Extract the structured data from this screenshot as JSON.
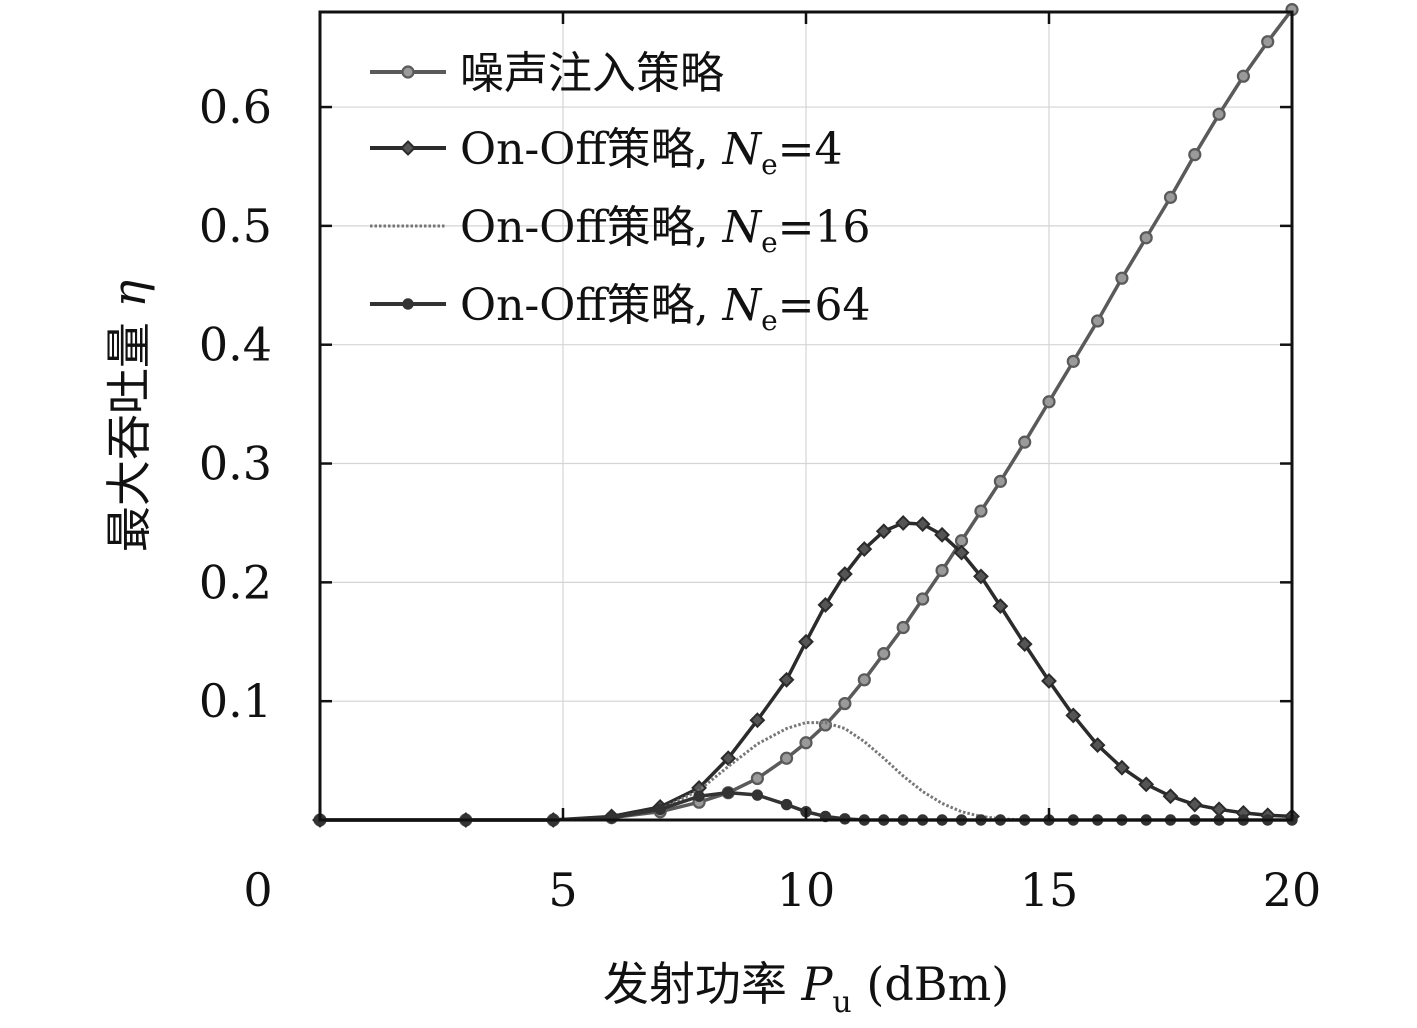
{
  "chart_data": {
    "type": "line",
    "xlabel": {
      "prefix": "发射功率 ",
      "var": "P",
      "sub": "u",
      "suffix": " (dBm)"
    },
    "ylabel": {
      "prefix": "最大吞吐量 ",
      "var": "η"
    },
    "xlim": [
      0,
      20
    ],
    "ylim": [
      0,
      0.68
    ],
    "xticks": [
      0,
      5,
      10,
      15,
      20
    ],
    "xtick_labels": [
      "0",
      "5",
      "10",
      "15",
      "20"
    ],
    "yticks": [
      0.1,
      0.2,
      0.3,
      0.4,
      0.5,
      0.6
    ],
    "ytick_labels": [
      "0.1",
      "0.2",
      "0.3",
      "0.4",
      "0.5",
      "0.6"
    ],
    "grid": true,
    "legend_position": "top-left",
    "series": [
      {
        "name": "噪声注入策略",
        "legend": {
          "text": "噪声注入策略",
          "var": "",
          "sub": "",
          "value": ""
        },
        "color": "#5a5a5a",
        "marker": "ring",
        "x": [
          0,
          3,
          4.8,
          6,
          7,
          7.8,
          8.4,
          9,
          9.6,
          10,
          10.4,
          10.8,
          11.2,
          11.6,
          12,
          12.4,
          12.8,
          13.2,
          13.6,
          14,
          14.5,
          15,
          15.5,
          16,
          16.5,
          17,
          17.5,
          18,
          18.5,
          19,
          19.5,
          20
        ],
        "y": [
          0,
          0,
          0,
          0.002,
          0.007,
          0.015,
          0.023,
          0.035,
          0.052,
          0.065,
          0.08,
          0.098,
          0.118,
          0.14,
          0.162,
          0.186,
          0.21,
          0.235,
          0.26,
          0.285,
          0.318,
          0.352,
          0.386,
          0.42,
          0.456,
          0.49,
          0.524,
          0.56,
          0.594,
          0.626,
          0.655,
          0.682
        ]
      },
      {
        "name": "On-Off策略, Ne=4",
        "legend": {
          "text": "On-Off策略, ",
          "var": "N",
          "sub": "e",
          "value": "=4"
        },
        "color": "#2b2b2b",
        "marker": "diamond",
        "x": [
          0,
          3,
          4.8,
          6,
          7,
          7.8,
          8.4,
          9,
          9.6,
          10,
          10.4,
          10.8,
          11.2,
          11.6,
          12,
          12.4,
          12.8,
          13.2,
          13.6,
          14,
          14.5,
          15,
          15.5,
          16,
          16.5,
          17,
          17.5,
          18,
          18.5,
          19,
          19.5,
          20
        ],
        "y": [
          0,
          0,
          0,
          0.003,
          0.011,
          0.027,
          0.052,
          0.084,
          0.118,
          0.15,
          0.181,
          0.207,
          0.228,
          0.243,
          0.25,
          0.249,
          0.24,
          0.225,
          0.205,
          0.18,
          0.148,
          0.117,
          0.088,
          0.063,
          0.044,
          0.03,
          0.02,
          0.013,
          0.009,
          0.006,
          0.004,
          0.003
        ]
      },
      {
        "name": "On-Off策略, Ne=16",
        "legend": {
          "text": "On-Off策略, ",
          "var": "N",
          "sub": "e",
          "value": "=16"
        },
        "color": "#777777",
        "marker": "none",
        "x": [
          0,
          3,
          4.8,
          6,
          7,
          7.8,
          8.4,
          9,
          9.6,
          10,
          10.4,
          10.8,
          11.2,
          11.6,
          12,
          12.4,
          12.8,
          13.2,
          13.6,
          14,
          14.5,
          15,
          16,
          17,
          18,
          19,
          20
        ],
        "y": [
          0,
          0,
          0,
          0.002,
          0.009,
          0.025,
          0.045,
          0.064,
          0.077,
          0.082,
          0.082,
          0.077,
          0.066,
          0.052,
          0.037,
          0.024,
          0.014,
          0.007,
          0.003,
          0.001,
          0,
          0,
          0,
          0,
          0,
          0,
          0
        ]
      },
      {
        "name": "On-Off策略, Ne=64",
        "legend": {
          "text": "On-Off策略, ",
          "var": "N",
          "sub": "e",
          "value": "=64"
        },
        "color": "#333333",
        "marker": "dot",
        "x": [
          0,
          3,
          4.8,
          6,
          7,
          7.8,
          8.4,
          9,
          9.6,
          10,
          10.4,
          10.8,
          11.2,
          11.6,
          12,
          12.4,
          12.8,
          13.2,
          13.6,
          14,
          14.5,
          15,
          15.5,
          16,
          16.5,
          17,
          17.5,
          18,
          18.5,
          19,
          19.5,
          20
        ],
        "y": [
          0,
          0,
          0,
          0.002,
          0.009,
          0.02,
          0.023,
          0.021,
          0.013,
          0.007,
          0.003,
          0.001,
          0,
          0,
          0,
          0,
          0,
          0,
          0,
          0,
          0,
          0,
          0,
          0,
          0,
          0,
          0,
          0,
          0,
          0,
          0,
          0
        ]
      }
    ]
  }
}
